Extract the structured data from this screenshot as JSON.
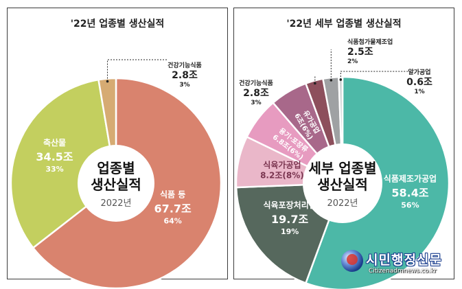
{
  "chart_data": [
    {
      "type": "pie",
      "variant": "donut",
      "title": "'22년 업종별 생산실적",
      "center_label": [
        "업종별",
        "생산실적"
      ],
      "center_sub": "2022년",
      "slices": [
        {
          "name": "식품 등",
          "value": "67.7조",
          "amount": 67.7,
          "pct": "64%",
          "color": "#d9836e",
          "label_color": "#ffffff"
        },
        {
          "name": "축산물",
          "value": "34.5조",
          "amount": 34.5,
          "pct": "33%",
          "color": "#c3cf5f",
          "label_color": "#ffffff"
        },
        {
          "name": "건강기능식품",
          "value": "2.8조",
          "amount": 2.8,
          "pct": "3%",
          "color": "#d6ab73",
          "label_color": "#222222",
          "callout": true
        }
      ]
    },
    {
      "type": "pie",
      "variant": "donut",
      "title": "'22년 세부 업종별 생산실적",
      "center_label": [
        "세부 업종별",
        "생산실적"
      ],
      "center_sub": "2022년",
      "slices": [
        {
          "name": "식품제조가공업",
          "value": "58.4조",
          "amount": 58.4,
          "pct": "56%",
          "color": "#4cb8a7",
          "label_color": "#ffffff"
        },
        {
          "name": "식육포장처리업",
          "value": "19.7조",
          "amount": 19.7,
          "pct": "19%",
          "color": "#56685d",
          "label_color": "#ffffff"
        },
        {
          "name": "식육가공업",
          "value": "8.2조(8%)",
          "amount": 8.2,
          "pct": "",
          "color": "#eab7c9",
          "label_color": "#7a3550"
        },
        {
          "name": "용기·포장류",
          "value": "6.8조(6%)",
          "amount": 6.8,
          "pct": "",
          "color": "#e79bc0",
          "label_color": "#ffffff"
        },
        {
          "name": "유가공업",
          "value": "6조(6%)",
          "amount": 6.0,
          "pct": "",
          "color": "#a8688a",
          "label_color": "#ffffff"
        },
        {
          "name": "건강기능식품",
          "value": "2.8조",
          "amount": 2.8,
          "pct": "3%",
          "color": "#8d4f5c",
          "label_color": "#222222",
          "callout": true
        },
        {
          "name": "식품첨가물제조업",
          "value": "2.5조",
          "amount": 2.5,
          "pct": "2%",
          "color": "#9fa1a3",
          "label_color": "#222222",
          "callout": true
        },
        {
          "name": "알가공업",
          "value": "0.6조",
          "amount": 0.6,
          "pct": "1%",
          "color": "#cfd3d4",
          "label_color": "#222222",
          "callout": true
        }
      ]
    }
  ],
  "watermark": {
    "name": "시민행정신문",
    "url": "Citizenadmnews.co.kr"
  }
}
